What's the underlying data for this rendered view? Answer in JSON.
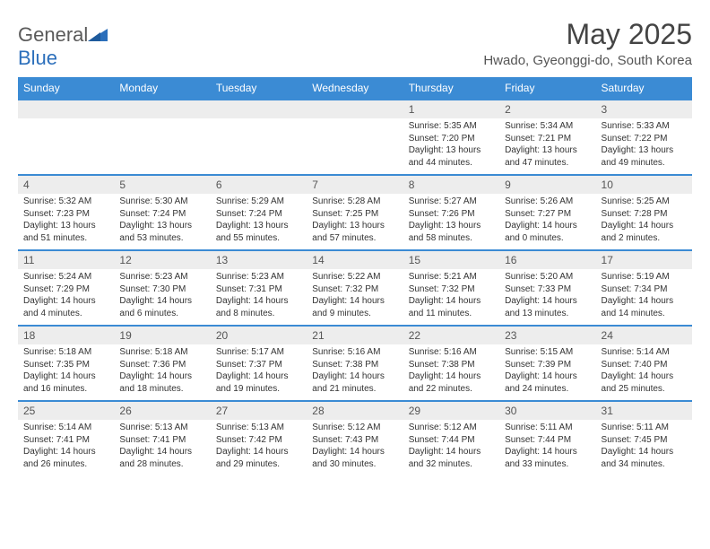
{
  "brand": {
    "part1": "General",
    "part2": "Blue"
  },
  "title": "May 2025",
  "location": "Hwado, Gyeonggi-do, South Korea",
  "colors": {
    "header_bg": "#3b8bd4",
    "header_text": "#ffffff",
    "date_bg": "#ededed",
    "border": "#3b8bd4",
    "logo_gray": "#5a5a5a",
    "logo_blue": "#2c6fbb"
  },
  "days_of_week": [
    "Sunday",
    "Monday",
    "Tuesday",
    "Wednesday",
    "Thursday",
    "Friday",
    "Saturday"
  ],
  "weeks": [
    [
      null,
      null,
      null,
      null,
      {
        "d": "1",
        "sr": "Sunrise: 5:35 AM",
        "ss": "Sunset: 7:20 PM",
        "dl1": "Daylight: 13 hours",
        "dl2": "and 44 minutes."
      },
      {
        "d": "2",
        "sr": "Sunrise: 5:34 AM",
        "ss": "Sunset: 7:21 PM",
        "dl1": "Daylight: 13 hours",
        "dl2": "and 47 minutes."
      },
      {
        "d": "3",
        "sr": "Sunrise: 5:33 AM",
        "ss": "Sunset: 7:22 PM",
        "dl1": "Daylight: 13 hours",
        "dl2": "and 49 minutes."
      }
    ],
    [
      {
        "d": "4",
        "sr": "Sunrise: 5:32 AM",
        "ss": "Sunset: 7:23 PM",
        "dl1": "Daylight: 13 hours",
        "dl2": "and 51 minutes."
      },
      {
        "d": "5",
        "sr": "Sunrise: 5:30 AM",
        "ss": "Sunset: 7:24 PM",
        "dl1": "Daylight: 13 hours",
        "dl2": "and 53 minutes."
      },
      {
        "d": "6",
        "sr": "Sunrise: 5:29 AM",
        "ss": "Sunset: 7:24 PM",
        "dl1": "Daylight: 13 hours",
        "dl2": "and 55 minutes."
      },
      {
        "d": "7",
        "sr": "Sunrise: 5:28 AM",
        "ss": "Sunset: 7:25 PM",
        "dl1": "Daylight: 13 hours",
        "dl2": "and 57 minutes."
      },
      {
        "d": "8",
        "sr": "Sunrise: 5:27 AM",
        "ss": "Sunset: 7:26 PM",
        "dl1": "Daylight: 13 hours",
        "dl2": "and 58 minutes."
      },
      {
        "d": "9",
        "sr": "Sunrise: 5:26 AM",
        "ss": "Sunset: 7:27 PM",
        "dl1": "Daylight: 14 hours",
        "dl2": "and 0 minutes."
      },
      {
        "d": "10",
        "sr": "Sunrise: 5:25 AM",
        "ss": "Sunset: 7:28 PM",
        "dl1": "Daylight: 14 hours",
        "dl2": "and 2 minutes."
      }
    ],
    [
      {
        "d": "11",
        "sr": "Sunrise: 5:24 AM",
        "ss": "Sunset: 7:29 PM",
        "dl1": "Daylight: 14 hours",
        "dl2": "and 4 minutes."
      },
      {
        "d": "12",
        "sr": "Sunrise: 5:23 AM",
        "ss": "Sunset: 7:30 PM",
        "dl1": "Daylight: 14 hours",
        "dl2": "and 6 minutes."
      },
      {
        "d": "13",
        "sr": "Sunrise: 5:23 AM",
        "ss": "Sunset: 7:31 PM",
        "dl1": "Daylight: 14 hours",
        "dl2": "and 8 minutes."
      },
      {
        "d": "14",
        "sr": "Sunrise: 5:22 AM",
        "ss": "Sunset: 7:32 PM",
        "dl1": "Daylight: 14 hours",
        "dl2": "and 9 minutes."
      },
      {
        "d": "15",
        "sr": "Sunrise: 5:21 AM",
        "ss": "Sunset: 7:32 PM",
        "dl1": "Daylight: 14 hours",
        "dl2": "and 11 minutes."
      },
      {
        "d": "16",
        "sr": "Sunrise: 5:20 AM",
        "ss": "Sunset: 7:33 PM",
        "dl1": "Daylight: 14 hours",
        "dl2": "and 13 minutes."
      },
      {
        "d": "17",
        "sr": "Sunrise: 5:19 AM",
        "ss": "Sunset: 7:34 PM",
        "dl1": "Daylight: 14 hours",
        "dl2": "and 14 minutes."
      }
    ],
    [
      {
        "d": "18",
        "sr": "Sunrise: 5:18 AM",
        "ss": "Sunset: 7:35 PM",
        "dl1": "Daylight: 14 hours",
        "dl2": "and 16 minutes."
      },
      {
        "d": "19",
        "sr": "Sunrise: 5:18 AM",
        "ss": "Sunset: 7:36 PM",
        "dl1": "Daylight: 14 hours",
        "dl2": "and 18 minutes."
      },
      {
        "d": "20",
        "sr": "Sunrise: 5:17 AM",
        "ss": "Sunset: 7:37 PM",
        "dl1": "Daylight: 14 hours",
        "dl2": "and 19 minutes."
      },
      {
        "d": "21",
        "sr": "Sunrise: 5:16 AM",
        "ss": "Sunset: 7:38 PM",
        "dl1": "Daylight: 14 hours",
        "dl2": "and 21 minutes."
      },
      {
        "d": "22",
        "sr": "Sunrise: 5:16 AM",
        "ss": "Sunset: 7:38 PM",
        "dl1": "Daylight: 14 hours",
        "dl2": "and 22 minutes."
      },
      {
        "d": "23",
        "sr": "Sunrise: 5:15 AM",
        "ss": "Sunset: 7:39 PM",
        "dl1": "Daylight: 14 hours",
        "dl2": "and 24 minutes."
      },
      {
        "d": "24",
        "sr": "Sunrise: 5:14 AM",
        "ss": "Sunset: 7:40 PM",
        "dl1": "Daylight: 14 hours",
        "dl2": "and 25 minutes."
      }
    ],
    [
      {
        "d": "25",
        "sr": "Sunrise: 5:14 AM",
        "ss": "Sunset: 7:41 PM",
        "dl1": "Daylight: 14 hours",
        "dl2": "and 26 minutes."
      },
      {
        "d": "26",
        "sr": "Sunrise: 5:13 AM",
        "ss": "Sunset: 7:41 PM",
        "dl1": "Daylight: 14 hours",
        "dl2": "and 28 minutes."
      },
      {
        "d": "27",
        "sr": "Sunrise: 5:13 AM",
        "ss": "Sunset: 7:42 PM",
        "dl1": "Daylight: 14 hours",
        "dl2": "and 29 minutes."
      },
      {
        "d": "28",
        "sr": "Sunrise: 5:12 AM",
        "ss": "Sunset: 7:43 PM",
        "dl1": "Daylight: 14 hours",
        "dl2": "and 30 minutes."
      },
      {
        "d": "29",
        "sr": "Sunrise: 5:12 AM",
        "ss": "Sunset: 7:44 PM",
        "dl1": "Daylight: 14 hours",
        "dl2": "and 32 minutes."
      },
      {
        "d": "30",
        "sr": "Sunrise: 5:11 AM",
        "ss": "Sunset: 7:44 PM",
        "dl1": "Daylight: 14 hours",
        "dl2": "and 33 minutes."
      },
      {
        "d": "31",
        "sr": "Sunrise: 5:11 AM",
        "ss": "Sunset: 7:45 PM",
        "dl1": "Daylight: 14 hours",
        "dl2": "and 34 minutes."
      }
    ]
  ]
}
